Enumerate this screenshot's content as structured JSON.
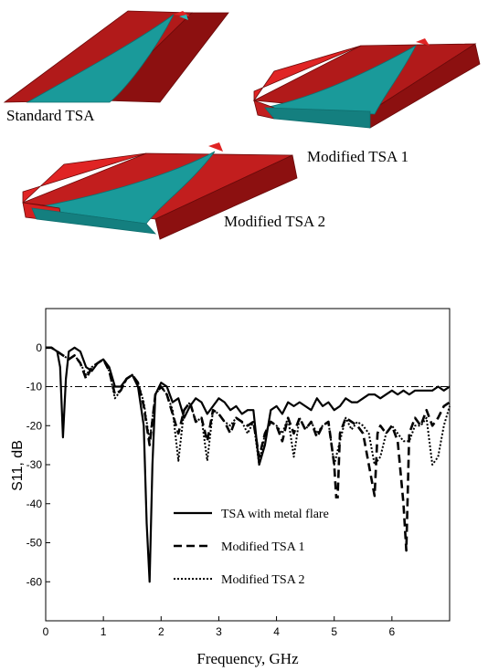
{
  "figure": {
    "antenna_labels": [
      "Standard TSA",
      "Modified TSA 1",
      "Modified TSA 2"
    ],
    "colors": {
      "flare": "#b11a1a",
      "flare_light": "#e02424",
      "flare_dark": "#7a0c0c",
      "substrate": "#1a9a9a",
      "substrate_dark": "#0f6f6f"
    }
  },
  "chart_data": {
    "type": "line",
    "xlabel": "Frequency, GHz",
    "ylabel": "S11, dB",
    "xlim": [
      0,
      7
    ],
    "ylim": [
      -70,
      10
    ],
    "xticks": [
      0,
      1,
      2,
      3,
      4,
      5,
      6
    ],
    "yticks": [
      0,
      -10,
      -20,
      -30,
      -40,
      -50,
      -60
    ],
    "reference_line": {
      "y": -10,
      "style": "dash-dot"
    },
    "legend_position": "lower-center",
    "series": [
      {
        "name": "TSA with metal flare",
        "style": "solid",
        "x": [
          0,
          0.1,
          0.2,
          0.25,
          0.3,
          0.35,
          0.4,
          0.5,
          0.6,
          0.7,
          0.8,
          0.9,
          1.0,
          1.1,
          1.2,
          1.3,
          1.4,
          1.5,
          1.6,
          1.7,
          1.75,
          1.8,
          1.85,
          1.9,
          2.0,
          2.1,
          2.2,
          2.3,
          2.4,
          2.5,
          2.6,
          2.7,
          2.8,
          2.9,
          3.0,
          3.1,
          3.2,
          3.3,
          3.4,
          3.5,
          3.6,
          3.7,
          3.8,
          3.9,
          4.0,
          4.1,
          4.2,
          4.3,
          4.4,
          4.5,
          4.6,
          4.7,
          4.8,
          4.9,
          5.0,
          5.1,
          5.2,
          5.3,
          5.4,
          5.5,
          5.6,
          5.7,
          5.8,
          5.9,
          6.0,
          6.1,
          6.2,
          6.3,
          6.4,
          6.5,
          6.6,
          6.7,
          6.8,
          6.9,
          7.0
        ],
        "y": [
          0,
          0,
          -1,
          -5,
          -23,
          -8,
          -1,
          0,
          -1,
          -5,
          -6,
          -4,
          -3,
          -5,
          -10,
          -10,
          -8,
          -7,
          -10,
          -20,
          -45,
          -60,
          -30,
          -12,
          -9,
          -10,
          -14,
          -13,
          -18,
          -15,
          -13,
          -14,
          -17,
          -15,
          -13,
          -14,
          -16,
          -15,
          -17,
          -16,
          -16,
          -30,
          -25,
          -16,
          -15,
          -17,
          -14,
          -15,
          -14,
          -15,
          -16,
          -13,
          -15,
          -14,
          -16,
          -15,
          -13,
          -14,
          -14,
          -13,
          -12,
          -12,
          -13,
          -12,
          -11,
          -12,
          -11,
          -12,
          -11,
          -11,
          -11,
          -11,
          -10,
          -11,
          -10
        ]
      },
      {
        "name": "Modified TSA 1",
        "style": "dashed",
        "x": [
          0,
          0.1,
          0.2,
          0.3,
          0.4,
          0.5,
          0.6,
          0.7,
          0.8,
          0.9,
          1.0,
          1.1,
          1.2,
          1.3,
          1.4,
          1.5,
          1.6,
          1.7,
          1.8,
          1.9,
          2.0,
          2.1,
          2.2,
          2.3,
          2.4,
          2.5,
          2.6,
          2.7,
          2.8,
          2.9,
          3.0,
          3.1,
          3.2,
          3.3,
          3.4,
          3.5,
          3.6,
          3.7,
          3.8,
          3.9,
          4.0,
          4.1,
          4.2,
          4.3,
          4.4,
          4.5,
          4.6,
          4.7,
          4.8,
          4.9,
          5.0,
          5.05,
          5.1,
          5.2,
          5.3,
          5.4,
          5.5,
          5.6,
          5.7,
          5.75,
          5.8,
          5.9,
          6.0,
          6.1,
          6.2,
          6.25,
          6.3,
          6.4,
          6.5,
          6.6,
          6.7,
          6.8,
          6.9,
          7.0
        ],
        "y": [
          0,
          0,
          -1,
          -2,
          -3,
          -2,
          -4,
          -8,
          -5,
          -4,
          -3,
          -6,
          -12,
          -11,
          -8,
          -7,
          -9,
          -15,
          -25,
          -12,
          -10,
          -12,
          -17,
          -22,
          -16,
          -14,
          -19,
          -18,
          -24,
          -16,
          -17,
          -19,
          -22,
          -18,
          -19,
          -20,
          -19,
          -28,
          -22,
          -19,
          -20,
          -24,
          -18,
          -22,
          -18,
          -21,
          -19,
          -23,
          -20,
          -19,
          -30,
          -42,
          -22,
          -18,
          -19,
          -20,
          -22,
          -30,
          -38,
          -22,
          -20,
          -22,
          -20,
          -24,
          -40,
          -52,
          -22,
          -18,
          -20,
          -16,
          -20,
          -18,
          -15,
          -14
        ]
      },
      {
        "name": "Modified TSA 2",
        "style": "dotted",
        "x": [
          0,
          0.1,
          0.2,
          0.3,
          0.4,
          0.5,
          0.6,
          0.7,
          0.8,
          0.9,
          1.0,
          1.1,
          1.2,
          1.3,
          1.4,
          1.5,
          1.6,
          1.7,
          1.8,
          1.9,
          2.0,
          2.1,
          2.2,
          2.3,
          2.4,
          2.5,
          2.6,
          2.7,
          2.8,
          2.9,
          3.0,
          3.1,
          3.2,
          3.3,
          3.4,
          3.5,
          3.6,
          3.7,
          3.8,
          3.9,
          4.0,
          4.1,
          4.2,
          4.3,
          4.4,
          4.5,
          4.6,
          4.7,
          4.8,
          4.9,
          5.0,
          5.1,
          5.2,
          5.3,
          5.4,
          5.5,
          5.6,
          5.7,
          5.8,
          5.9,
          6.0,
          6.1,
          6.2,
          6.3,
          6.4,
          6.5,
          6.6,
          6.7,
          6.8,
          6.9,
          7.0
        ],
        "y": [
          0,
          0,
          -1,
          -2,
          -3,
          -2,
          -4,
          -7,
          -5,
          -4,
          -3,
          -6,
          -13,
          -11,
          -8,
          -7,
          -9,
          -14,
          -24,
          -12,
          -10,
          -12,
          -16,
          -29,
          -16,
          -14,
          -19,
          -18,
          -29,
          -16,
          -17,
          -19,
          -20,
          -18,
          -19,
          -22,
          -19,
          -30,
          -22,
          -19,
          -20,
          -22,
          -18,
          -28,
          -18,
          -21,
          -19,
          -22,
          -20,
          -19,
          -30,
          -24,
          -18,
          -21,
          -19,
          -20,
          -22,
          -30,
          -28,
          -22,
          -20,
          -22,
          -24,
          -24,
          -20,
          -20,
          -18,
          -30,
          -28,
          -20,
          -15
        ]
      }
    ]
  }
}
